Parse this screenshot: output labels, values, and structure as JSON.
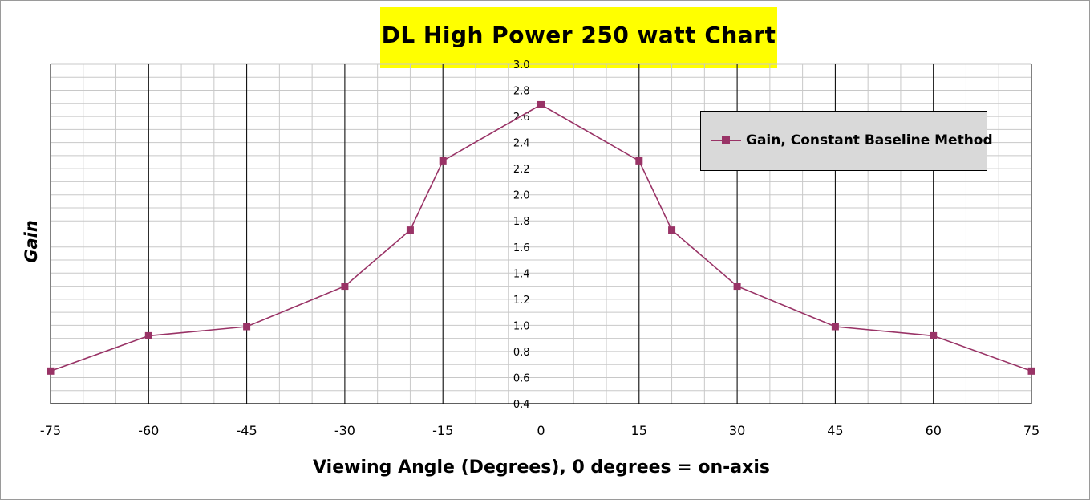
{
  "chart_data": {
    "type": "line",
    "title": "DL High Power 250 watt Chart",
    "xlabel": "Viewing Angle (Degrees), 0 degrees = on-axis",
    "ylabel": "Gain",
    "xlim": [
      -75,
      75
    ],
    "ylim": [
      0.4,
      3.0
    ],
    "x_ticks": [
      -75,
      -60,
      -45,
      -30,
      -15,
      0,
      15,
      30,
      45,
      60,
      75
    ],
    "y_ticks": [
      "0.4",
      "0.6",
      "0.8",
      "1.0",
      "1.2",
      "1.4",
      "1.6",
      "1.8",
      "2.0",
      "2.2",
      "2.4",
      "2.6",
      "2.8",
      "3.0"
    ],
    "grid": true,
    "legend_position": "top-right",
    "series": [
      {
        "name": "Gain, Constant Baseline Method",
        "color": "#993366",
        "x": [
          -75,
          -60,
          -45,
          -30,
          -20,
          -15,
          0,
          15,
          20,
          30,
          45,
          60,
          75
        ],
        "y": [
          0.65,
          0.92,
          0.99,
          1.3,
          1.73,
          2.26,
          2.69,
          2.26,
          1.73,
          1.3,
          0.99,
          0.92,
          0.65
        ]
      }
    ]
  }
}
